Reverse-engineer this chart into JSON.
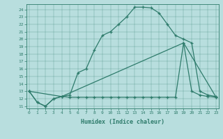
{
  "xlabel": "Humidex (Indice chaleur)",
  "bg_color": "#b8dede",
  "line_color": "#2e7b6b",
  "xlim": [
    -0.3,
    23.3
  ],
  "ylim": [
    10.7,
    24.7
  ],
  "xticks": [
    0,
    1,
    2,
    3,
    4,
    5,
    6,
    7,
    8,
    9,
    10,
    11,
    12,
    13,
    14,
    15,
    16,
    17,
    18,
    19,
    20,
    21,
    22,
    23
  ],
  "yticks": [
    11,
    12,
    13,
    14,
    15,
    16,
    17,
    18,
    19,
    20,
    21,
    22,
    23,
    24
  ],
  "curve1_x": [
    0,
    1,
    2,
    3,
    4,
    5,
    6,
    7,
    8,
    9,
    10,
    11,
    12,
    13,
    14,
    15,
    16,
    17,
    18,
    19,
    20,
    21,
    22,
    23
  ],
  "curve1_y": [
    13.0,
    11.5,
    11.0,
    12.0,
    12.3,
    12.5,
    15.5,
    16.0,
    18.5,
    20.5,
    21.0,
    22.0,
    23.0,
    24.3,
    24.3,
    24.2,
    23.5,
    22.0,
    20.5,
    20.0,
    19.5,
    13.0,
    12.5,
    12.3
  ],
  "curve2_x": [
    0,
    1,
    2,
    3,
    4,
    5,
    6,
    7,
    8,
    9,
    10,
    11,
    12,
    13,
    14,
    15,
    16,
    17,
    18,
    19,
    20,
    21,
    22,
    23
  ],
  "curve2_y": [
    13.0,
    11.5,
    11.0,
    12.0,
    12.3,
    12.2,
    12.2,
    12.2,
    12.2,
    12.2,
    12.2,
    12.2,
    12.2,
    12.2,
    12.2,
    12.2,
    12.2,
    12.2,
    12.2,
    19.5,
    13.0,
    12.5,
    12.3,
    12.2
  ],
  "curve3_x": [
    0,
    4,
    19,
    23
  ],
  "curve3_y": [
    13.0,
    12.3,
    19.5,
    12.2
  ]
}
